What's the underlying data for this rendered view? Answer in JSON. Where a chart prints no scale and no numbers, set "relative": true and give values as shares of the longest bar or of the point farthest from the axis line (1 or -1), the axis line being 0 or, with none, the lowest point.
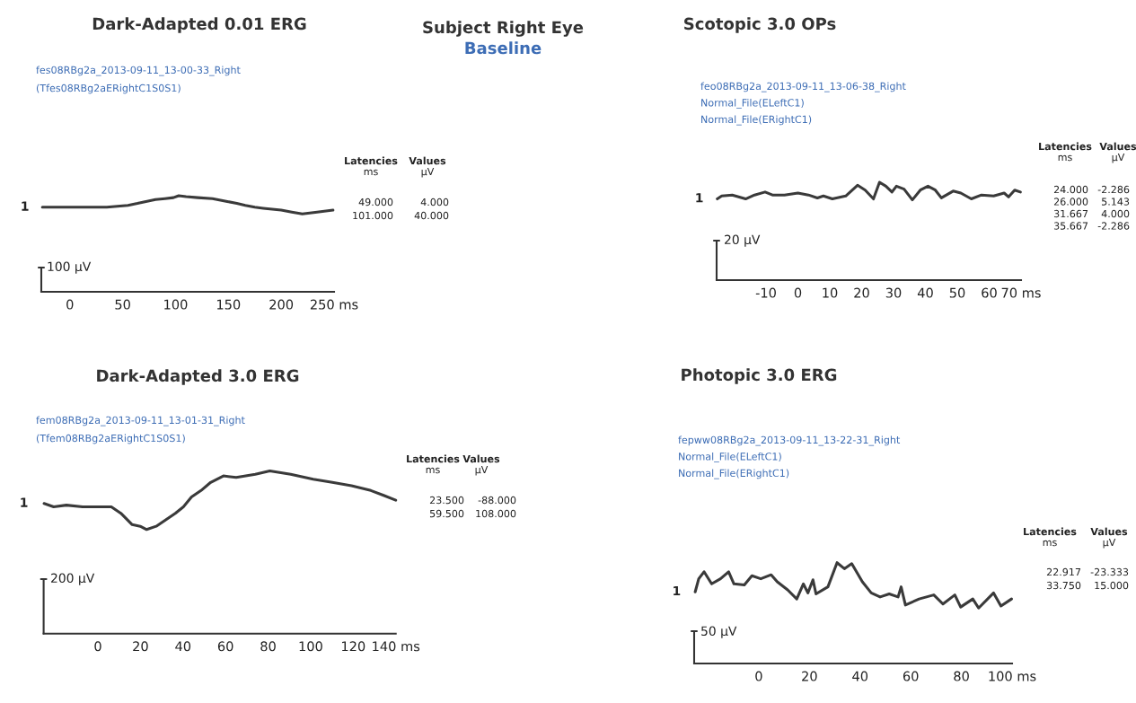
{
  "chart_data": [
    {
      "type": "line",
      "title": "Dark-Adapted 0.01 ERG",
      "relative": true,
      "tick_labels": "x",
      "xlim": [
        -27,
        250
      ],
      "xticks": [
        0,
        50,
        100,
        150,
        200,
        {
          "value": 250,
          "label": "250 ms"
        }
      ],
      "series": [
        {
          "name": "1",
          "color": "#3a3a3a",
          "x": [
            -26,
            0,
            12,
            25,
            35,
            45,
            55,
            64,
            72,
            81,
            90,
            98,
            103,
            110,
            121,
            135,
            149,
            158,
            166,
            175,
            183,
            200,
            210,
            220,
            234,
            249
          ],
          "values": [
            0.88,
            0.88,
            0.88,
            0.88,
            0.88,
            0.89,
            0.9,
            0.92,
            0.94,
            0.96,
            0.97,
            0.98,
            1,
            0.99,
            0.98,
            0.97,
            0.94,
            0.92,
            0.9,
            0.88,
            0.87,
            0.85,
            0.83,
            0.81,
            0.83,
            0.85
          ]
        }
      ],
      "annotations": [
        "fes08RBg2a_2013-09-11_13-00-33_Right",
        "(Tfes08RBg2aERightC1S0S1)",
        "100 µV",
        "Latencies",
        "Values",
        "ms",
        "µV",
        "49.000",
        "4.000",
        "101.000",
        "40.000"
      ]
    },
    {
      "type": "other",
      "title": "Subject Right Eye",
      "subtitle": "Baseline"
    },
    {
      "type": "line",
      "title": "Scotopic 3.0 OPs",
      "relative": true,
      "tick_labels": "x",
      "xlim": [
        -25.5,
        70
      ],
      "xticks": [
        -10,
        0,
        10,
        20,
        30,
        40,
        50,
        60,
        {
          "value": 70,
          "label": "70 ms"
        }
      ],
      "series": [
        {
          "name": "1",
          "color": "#3a3a3a",
          "x": [
            -25.3,
            -23.9,
            -20.6,
            -16.4,
            -13.6,
            -10.3,
            -8,
            -4.2,
            0,
            3.3,
            6.1,
            8,
            10.8,
            15,
            18.7,
            21.1,
            23.7,
            25.6,
            27.6,
            29.5,
            30.9,
            33.3,
            35.9,
            38.4,
            40.8,
            43.1,
            45,
            48.7,
            51.1,
            54.4,
            57.6,
            61.4,
            64.7,
            66.1,
            68,
            69.8
          ],
          "values": [
            0.83,
            0.86,
            0.87,
            0.83,
            0.87,
            0.9,
            0.87,
            0.87,
            0.89,
            0.87,
            0.84,
            0.86,
            0.83,
            0.86,
            0.97,
            0.92,
            0.83,
            1,
            0.96,
            0.9,
            0.96,
            0.93,
            0.82,
            0.92,
            0.96,
            0.92,
            0.84,
            0.91,
            0.89,
            0.83,
            0.87,
            0.86,
            0.89,
            0.85,
            0.92,
            0.9
          ]
        }
      ],
      "annotations": [
        "feo08RBg2a_2013-09-11_13-06-38_Right",
        "Normal_File(ELeftC1)",
        "Normal_File(ERightC1)",
        "20 µV",
        "Latencies",
        "Values",
        "ms",
        "µV",
        "24.000",
        "-2.286",
        "26.000",
        "5.143",
        "31.667",
        "4.000",
        "35.667",
        "-2.286"
      ]
    },
    {
      "type": "line",
      "title": "Dark-Adapted 3.0 ERG",
      "relative": true,
      "tick_labels": "x",
      "xlim": [
        -25.5,
        140
      ],
      "xticks": [
        0,
        20,
        40,
        60,
        80,
        100,
        120,
        {
          "value": 140,
          "label": "140 ms"
        }
      ],
      "series": [
        {
          "name": "1",
          "color": "#3a3a3a",
          "x": [
            -25.3,
            -20.8,
            -14.8,
            -7.2,
            0,
            6.3,
            10.8,
            16.1,
            19.9,
            22.9,
            27.4,
            31.9,
            36.4,
            40.2,
            44,
            48.5,
            53,
            59,
            65,
            74,
            80.8,
            90.6,
            101.2,
            110.2,
            119.2,
            128.3,
            134.3,
            140
          ],
          "values": [
            0.8,
            0.78,
            0.79,
            0.78,
            0.78,
            0.78,
            0.74,
            0.67,
            0.66,
            0.64,
            0.66,
            0.7,
            0.74,
            0.78,
            0.84,
            0.88,
            0.93,
            0.97,
            0.96,
            0.98,
            1,
            0.98,
            0.95,
            0.93,
            0.91,
            0.88,
            0.85,
            0.82
          ]
        }
      ],
      "annotations": [
        "fem08RBg2a_2013-09-11_13-01-31_Right",
        "(Tfem08RBg2aERightC1S0S1)",
        "200 µV",
        "Latencies",
        "Values",
        "ms",
        "µV",
        "23.500",
        "-88.000",
        "59.500",
        "108.000"
      ]
    },
    {
      "type": "line",
      "title": "Photopic 3.0 ERG",
      "relative": true,
      "tick_labels": "x",
      "xlim": [
        -25.5,
        100
      ],
      "xticks": [
        0,
        20,
        40,
        60,
        80,
        {
          "value": 100,
          "label": "100 ms"
        }
      ],
      "series": [
        {
          "name": "1",
          "color": "#3a3a3a",
          "x": [
            -25.1,
            -23.7,
            -21.6,
            -18.6,
            -15.1,
            -11.9,
            -9.8,
            -5.7,
            -2.7,
            0.8,
            4.9,
            7.3,
            11.4,
            15,
            17.6,
            19.4,
            21.4,
            22.6,
            27.3,
            30.9,
            33.8,
            36.7,
            40.9,
            44.4,
            47.9,
            51.5,
            55,
            56.2,
            57.9,
            63.3,
            69.1,
            72.7,
            77.4,
            79.7,
            84.5,
            86.8,
            92.7,
            95.6,
            99.8
          ],
          "values": [
            0.71,
            0.84,
            0.91,
            0.79,
            0.84,
            0.91,
            0.79,
            0.78,
            0.87,
            0.84,
            0.88,
            0.81,
            0.73,
            0.64,
            0.79,
            0.7,
            0.83,
            0.69,
            0.76,
            1,
            0.94,
            0.99,
            0.81,
            0.7,
            0.66,
            0.69,
            0.66,
            0.76,
            0.58,
            0.64,
            0.68,
            0.59,
            0.68,
            0.56,
            0.64,
            0.55,
            0.7,
            0.57,
            0.64
          ]
        }
      ],
      "annotations": [
        "fepww08RBg2a_2013-09-11_13-22-31_Right",
        "Normal_File(ELeftC1)",
        "Normal_File(ERightC1)",
        "50 µV",
        "Latencies",
        "Values",
        "ms",
        "µV",
        "22.917",
        "-23.333",
        "33.750",
        "15.000"
      ]
    }
  ]
}
